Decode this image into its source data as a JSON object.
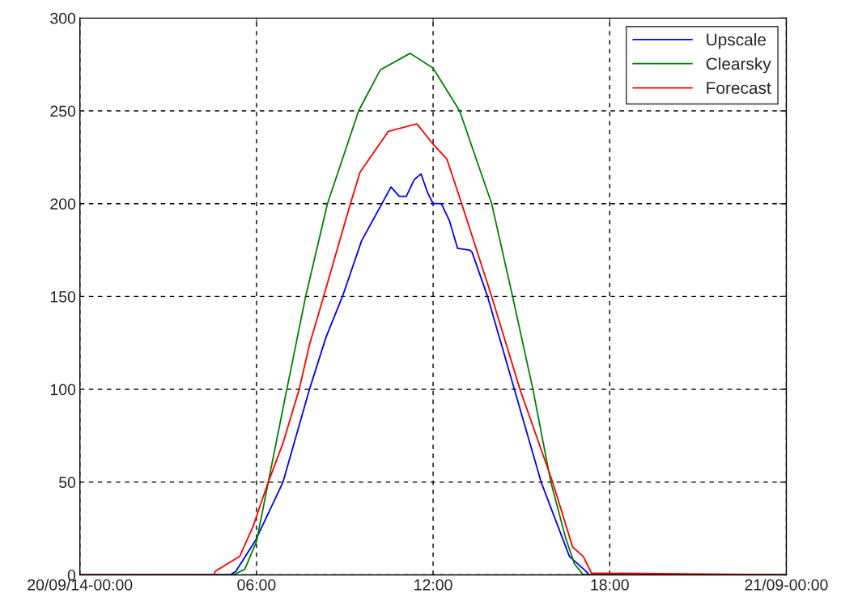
{
  "chart_data": {
    "type": "line",
    "xlim": [
      0,
      24
    ],
    "ylim": [
      0,
      300
    ],
    "xticks": [
      {
        "value": 0,
        "label": "20/09/14-00:00"
      },
      {
        "value": 6,
        "label": "06:00"
      },
      {
        "value": 12,
        "label": "12:00"
      },
      {
        "value": 18,
        "label": "18:00"
      },
      {
        "value": 24,
        "label": "21/09-00:00"
      }
    ],
    "yticks": [
      0,
      50,
      100,
      150,
      200,
      250,
      300
    ],
    "grid": true,
    "legend": "top right",
    "line_style": "solid",
    "series": [
      {
        "name": "Upscale",
        "color": "#0000ff",
        "x": [
          0,
          5.1,
          5.3,
          5.98,
          6.9,
          7.8,
          8.36,
          8.92,
          9.57,
          10.57,
          10.85,
          11.09,
          11.36,
          11.59,
          11.81,
          12.0,
          12.28,
          12.55,
          12.83,
          13.24,
          13.32,
          13.85,
          14.76,
          15.67,
          16.63,
          17.19,
          17.3,
          24
        ],
        "values": [
          0,
          0,
          2,
          19,
          50,
          100,
          128,
          150,
          180,
          209,
          204,
          204,
          213,
          216,
          206,
          200,
          200,
          191,
          176,
          175,
          174,
          150,
          100,
          50,
          10,
          2,
          0,
          0
        ]
      },
      {
        "name": "Clearsky",
        "color": "#008000",
        "x": [
          0,
          5.2,
          5.6,
          6,
          6.4,
          7.03,
          7.67,
          8.41,
          9.47,
          10.2,
          11.22,
          12,
          12.9,
          13.99,
          14.7,
          15.39,
          16.0,
          16.5,
          16.8,
          17.1,
          24
        ],
        "values": [
          0,
          0,
          3,
          18,
          50,
          100,
          150,
          200,
          250,
          272,
          281,
          273,
          250,
          200,
          150,
          100,
          50,
          20,
          6,
          0,
          0
        ]
      },
      {
        "name": "Forecast",
        "color": "#ff0000",
        "x": [
          0,
          4.55,
          4.6,
          5.43,
          5.88,
          6.4,
          6.9,
          7.45,
          7.8,
          8.28,
          9.19,
          9.52,
          10.48,
          11.45,
          11.95,
          12.47,
          12.97,
          13.99,
          14.95,
          16.06,
          16.74,
          17.1,
          17.38,
          24
        ],
        "values": [
          0,
          0,
          2,
          10,
          26,
          50,
          71,
          100,
          124,
          150,
          200,
          217,
          239,
          243,
          233,
          224,
          200,
          150,
          100,
          50,
          15,
          10,
          1,
          0
        ]
      }
    ]
  }
}
